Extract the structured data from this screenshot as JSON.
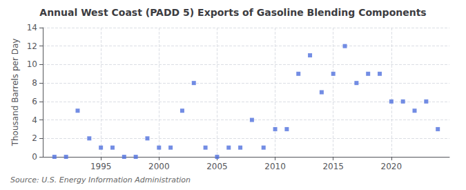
{
  "chart_data": {
    "type": "scatter",
    "title": "Annual West Coast (PADD 5) Exports of Gasoline Blending Components",
    "ylabel": "Thousand Barrels per Day",
    "source": "Source: U.S. Energy Information Administration",
    "x": [
      1991,
      1992,
      1993,
      1994,
      1995,
      1996,
      1997,
      1998,
      1999,
      2000,
      2001,
      2002,
      2003,
      2004,
      2005,
      2006,
      2007,
      2008,
      2009,
      2010,
      2011,
      2012,
      2013,
      2014,
      2015,
      2016,
      2017,
      2018,
      2019,
      2020,
      2021,
      2022,
      2023,
      2024
    ],
    "values": [
      0,
      0,
      5,
      2,
      1,
      1,
      0,
      0,
      2,
      1,
      1,
      5,
      8,
      1,
      0,
      1,
      1,
      4,
      1,
      3,
      3,
      9,
      11,
      7,
      9,
      12,
      8,
      9,
      9,
      6,
      6,
      5,
      6,
      3
    ],
    "xlim": [
      1990,
      2025
    ],
    "xticks": [
      1995,
      2000,
      2005,
      2010,
      2015,
      2020
    ],
    "ylim": [
      0,
      14
    ],
    "yticks": [
      0,
      2,
      4,
      6,
      8,
      10,
      12,
      14
    ],
    "marker": "square",
    "grid": true
  }
}
